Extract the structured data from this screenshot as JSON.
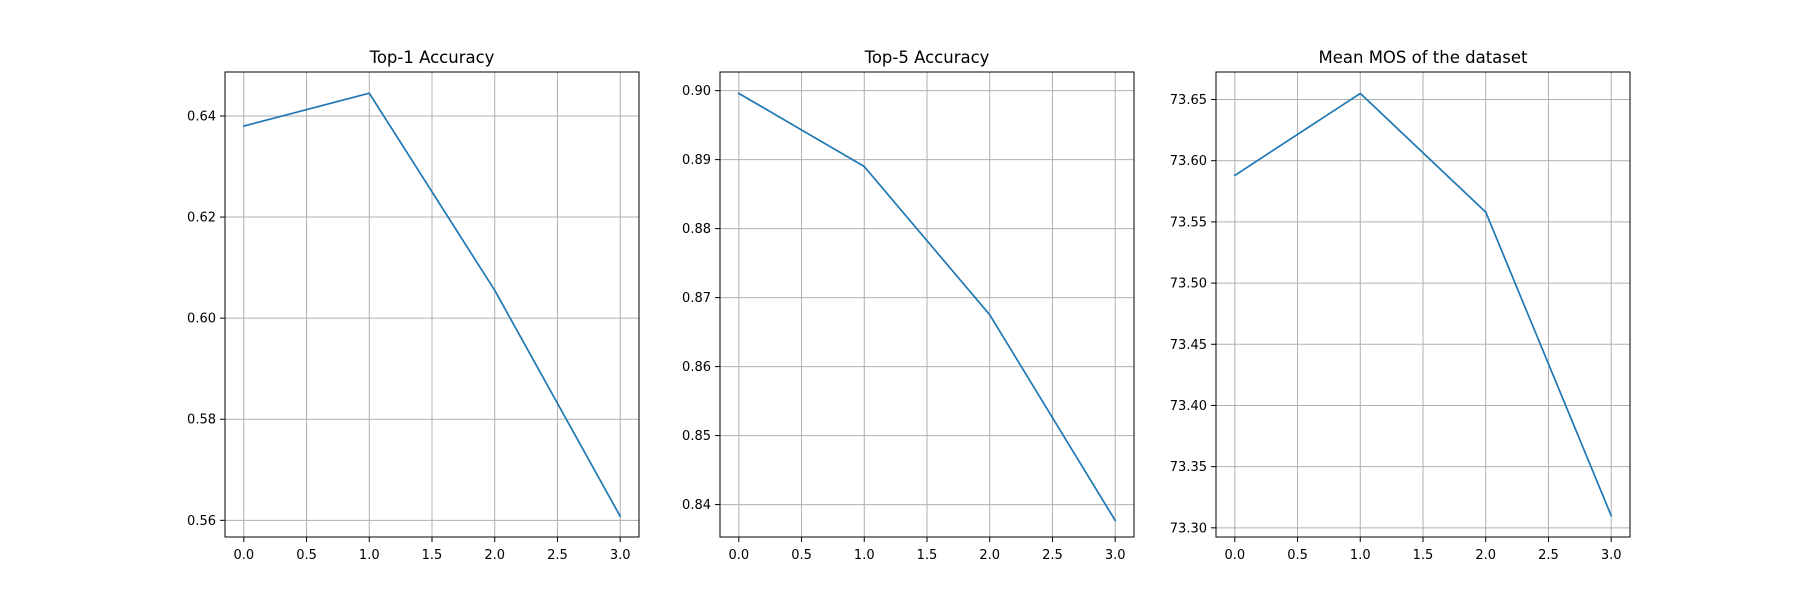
{
  "chart_data": [
    {
      "type": "line",
      "title": "Top-1 Accuracy",
      "xlabel": "",
      "ylabel": "",
      "x": [
        0,
        1,
        2,
        3
      ],
      "series": [
        {
          "values": [
            0.638,
            0.6445,
            0.6055,
            0.5608
          ]
        }
      ],
      "xlim": [
        -0.15,
        3.15
      ],
      "ylim": [
        0.5567,
        0.6487
      ],
      "xticks": [
        0.0,
        0.5,
        1.0,
        1.5,
        2.0,
        2.5,
        3.0
      ],
      "xtick_labels": [
        "0.0",
        "0.5",
        "1.0",
        "1.5",
        "2.0",
        "2.5",
        "3.0"
      ],
      "yticks": [
        0.56,
        0.58,
        0.6,
        0.62,
        0.64
      ],
      "ytick_labels": [
        "0.56",
        "0.58",
        "0.60",
        "0.62",
        "0.64"
      ],
      "grid": true,
      "line_color": "#1f77b4"
    },
    {
      "type": "line",
      "title": "Top-5 Accuracy",
      "xlabel": "",
      "ylabel": "",
      "x": [
        0,
        1,
        2,
        3
      ],
      "series": [
        {
          "values": [
            0.8996,
            0.889,
            0.8675,
            0.8377
          ]
        }
      ],
      "xlim": [
        -0.15,
        3.15
      ],
      "ylim": [
        0.8353,
        0.9027
      ],
      "xticks": [
        0.0,
        0.5,
        1.0,
        1.5,
        2.0,
        2.5,
        3.0
      ],
      "xtick_labels": [
        "0.0",
        "0.5",
        "1.0",
        "1.5",
        "2.0",
        "2.5",
        "3.0"
      ],
      "yticks": [
        0.84,
        0.85,
        0.86,
        0.87,
        0.88,
        0.89,
        0.9
      ],
      "ytick_labels": [
        "0.84",
        "0.85",
        "0.86",
        "0.87",
        "0.88",
        "0.89",
        "0.90"
      ],
      "grid": true,
      "line_color": "#1f77b4"
    },
    {
      "type": "line",
      "title": "Mean MOS of the dataset",
      "xlabel": "",
      "ylabel": "",
      "x": [
        0,
        1,
        2,
        3
      ],
      "series": [
        {
          "values": [
            73.588,
            73.655,
            73.558,
            73.31
          ]
        }
      ],
      "xlim": [
        -0.15,
        3.15
      ],
      "ylim": [
        73.2925,
        73.6725
      ],
      "xticks": [
        0.0,
        0.5,
        1.0,
        1.5,
        2.0,
        2.5,
        3.0
      ],
      "xtick_labels": [
        "0.0",
        "0.5",
        "1.0",
        "1.5",
        "2.0",
        "2.5",
        "3.0"
      ],
      "yticks": [
        73.3,
        73.35,
        73.4,
        73.45,
        73.5,
        73.55,
        73.6,
        73.65
      ],
      "ytick_labels": [
        "73.30",
        "73.35",
        "73.40",
        "73.45",
        "73.50",
        "73.55",
        "73.60",
        "73.65"
      ],
      "grid": true,
      "line_color": "#1f77b4"
    }
  ]
}
